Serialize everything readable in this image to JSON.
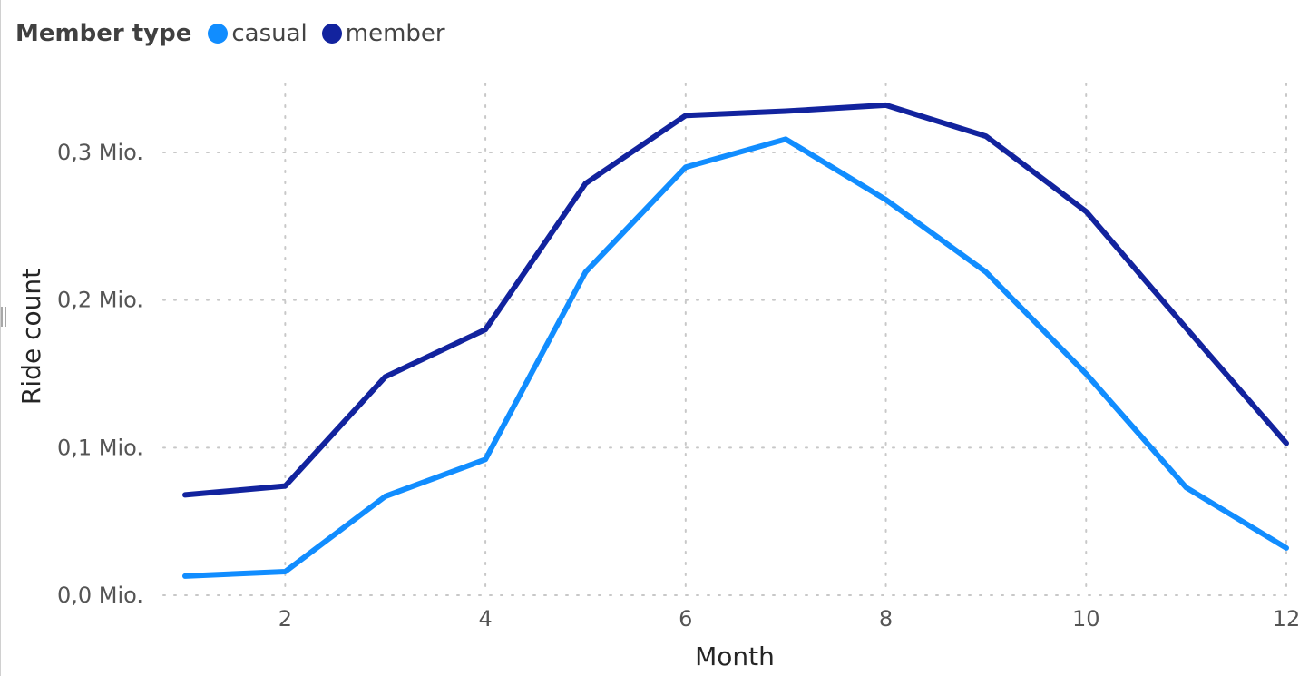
{
  "legend": {
    "title": "Member type",
    "items": [
      {
        "label": "casual",
        "color": "#118DFF"
      },
      {
        "label": "member",
        "color": "#12239E"
      }
    ]
  },
  "chart_data": {
    "type": "line",
    "xlabel": "Month",
    "ylabel": "Ride count",
    "x": [
      1,
      2,
      3,
      4,
      5,
      6,
      7,
      8,
      9,
      10,
      11,
      12
    ],
    "xlim": [
      1,
      12
    ],
    "xticks": [
      2,
      4,
      6,
      8,
      10,
      12
    ],
    "xtick_labels": [
      "2",
      "4",
      "6",
      "8",
      "10",
      "12"
    ],
    "ylim": [
      0,
      0.3
    ],
    "yticks": [
      0,
      0.1,
      0.2,
      0.3
    ],
    "ytick_labels": [
      "0,0 Mio.",
      "0,1 Mio.",
      "0,2 Mio.",
      "0,3 Mio."
    ],
    "grid": true,
    "legend_position": "top-left",
    "series": [
      {
        "name": "casual",
        "color": "#118DFF",
        "values": [
          0.013,
          0.016,
          0.067,
          0.092,
          0.219,
          0.29,
          0.309,
          0.268,
          0.219,
          0.15,
          0.073,
          0.032
        ]
      },
      {
        "name": "member",
        "color": "#12239E",
        "values": [
          0.068,
          0.074,
          0.148,
          0.18,
          0.279,
          0.325,
          0.328,
          0.332,
          0.311,
          0.26,
          0.181,
          0.103
        ]
      }
    ]
  }
}
